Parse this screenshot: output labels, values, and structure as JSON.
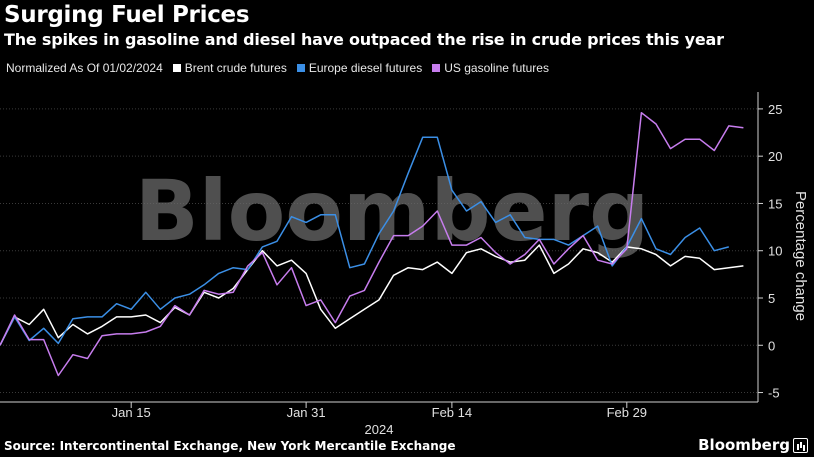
{
  "title": "Surging Fuel Prices",
  "subtitle": "The spikes in gasoline and diesel have outpaced the rise in crude prices this year",
  "legend_note": "Normalized As Of 01/02/2024",
  "source": "Source: Intercontinental Exchange, New York Mercantile Exchange",
  "brand": "Bloomberg",
  "watermark": "Bloomberg",
  "colors": {
    "brent": "#ffffff",
    "diesel": "#3b8fe6",
    "gasoline": "#c77dee",
    "grid": "#3a3a3a"
  },
  "chart_data": {
    "type": "line",
    "title": "Surging Fuel Prices",
    "subtitle": "The spikes in gasoline and diesel have outpaced the rise in crude prices this year",
    "xlabel": "2024",
    "ylabel": "Percentage change",
    "ylim": [
      -6,
      27
    ],
    "yticks": [
      25,
      20,
      15,
      10,
      5,
      0,
      -5
    ],
    "xticks": [
      {
        "label": "Jan 15",
        "index": 9
      },
      {
        "label": "Jan 31",
        "index": 21
      },
      {
        "label": "Feb 14",
        "index": 31
      },
      {
        "label": "Feb 29",
        "index": 43
      }
    ],
    "grid": true,
    "legend_position": "top-left",
    "x_count": 53,
    "series": [
      {
        "name": "Brent crude futures",
        "color_key": "brent",
        "values": [
          0,
          3.0,
          2.2,
          3.8,
          0.8,
          2.2,
          1.2,
          2.0,
          3.0,
          3.0,
          3.2,
          2.4,
          4.0,
          3.2,
          5.6,
          5.0,
          6.0,
          8.0,
          10.0,
          8.4,
          9.0,
          7.6,
          3.8,
          1.8,
          2.8,
          3.8,
          4.8,
          7.4,
          8.2,
          8.0,
          8.8,
          7.6,
          9.8,
          10.2,
          9.4,
          8.8,
          9.0,
          10.6,
          7.6,
          8.6,
          10.2,
          9.8,
          8.8,
          10.4,
          10.2,
          9.6,
          8.4,
          9.4,
          9.2,
          8.0,
          8.2,
          8.4,
          null
        ]
      },
      {
        "name": "Europe diesel futures",
        "color_key": "diesel",
        "values": [
          0,
          3.0,
          0.5,
          1.8,
          0.2,
          2.8,
          3.0,
          3.0,
          4.4,
          3.8,
          5.6,
          3.8,
          5.0,
          5.4,
          6.4,
          7.6,
          8.2,
          8.0,
          10.4,
          11.0,
          13.6,
          13.0,
          13.8,
          13.8,
          8.2,
          8.6,
          11.8,
          14.2,
          18.2,
          22.0,
          22.0,
          16.4,
          14.2,
          15.2,
          13.0,
          13.8,
          11.4,
          11.2,
          11.2,
          10.6,
          11.6,
          12.6,
          8.4,
          10.4,
          13.4,
          10.2,
          9.6,
          11.4,
          12.4,
          10.0,
          10.4,
          null,
          null
        ]
      },
      {
        "name": "US gasoline futures",
        "color_key": "gasoline",
        "values": [
          0,
          3.2,
          0.6,
          0.6,
          -3.2,
          -1.0,
          -1.4,
          1.0,
          1.2,
          1.2,
          1.4,
          2.0,
          4.2,
          3.2,
          5.8,
          5.4,
          5.6,
          8.4,
          9.8,
          6.4,
          8.2,
          4.2,
          4.8,
          2.4,
          5.2,
          5.8,
          8.8,
          11.6,
          11.6,
          12.6,
          14.2,
          10.6,
          10.6,
          11.4,
          9.8,
          8.6,
          9.6,
          11.2,
          8.6,
          10.2,
          11.6,
          9.0,
          8.6,
          10.2,
          24.6,
          23.4,
          20.8,
          21.8,
          21.8,
          20.6,
          23.2,
          23.0,
          null
        ]
      }
    ]
  }
}
